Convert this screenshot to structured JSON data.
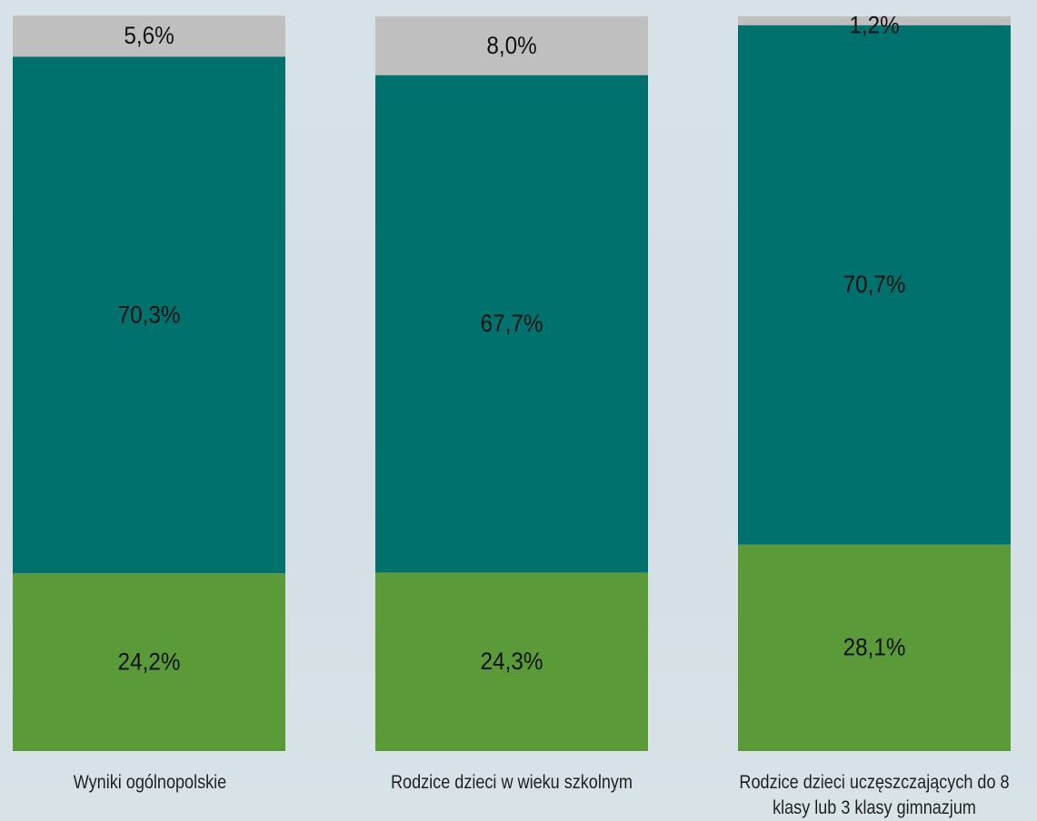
{
  "chart_data": {
    "type": "bar",
    "stacked": true,
    "normalized_percent": true,
    "categories": [
      "Wyniki ogólnopolskie",
      "Rodzice dzieci w wieku szkolnym",
      "Rodzice dzieci uczęszczających do 8 klasy lub 3 klasy gimnazjum"
    ],
    "series": [
      {
        "values": [
          24.2,
          24.3,
          28.1
        ],
        "labels": [
          "24,2%",
          "24,3%",
          "28,1%"
        ]
      },
      {
        "values": [
          70.3,
          67.7,
          70.7
        ],
        "labels": [
          "70,3%",
          "67,7%",
          "70,7%"
        ]
      },
      {
        "values": [
          5.6,
          8.0,
          1.2
        ],
        "labels": [
          "5,6%",
          "8,0%",
          "1,2%"
        ]
      }
    ],
    "colors": [
      "#5b9a38",
      "#00716d",
      "#c0bfbf"
    ],
    "ylim": [
      0,
      100
    ],
    "grid": false,
    "legend": "none"
  }
}
